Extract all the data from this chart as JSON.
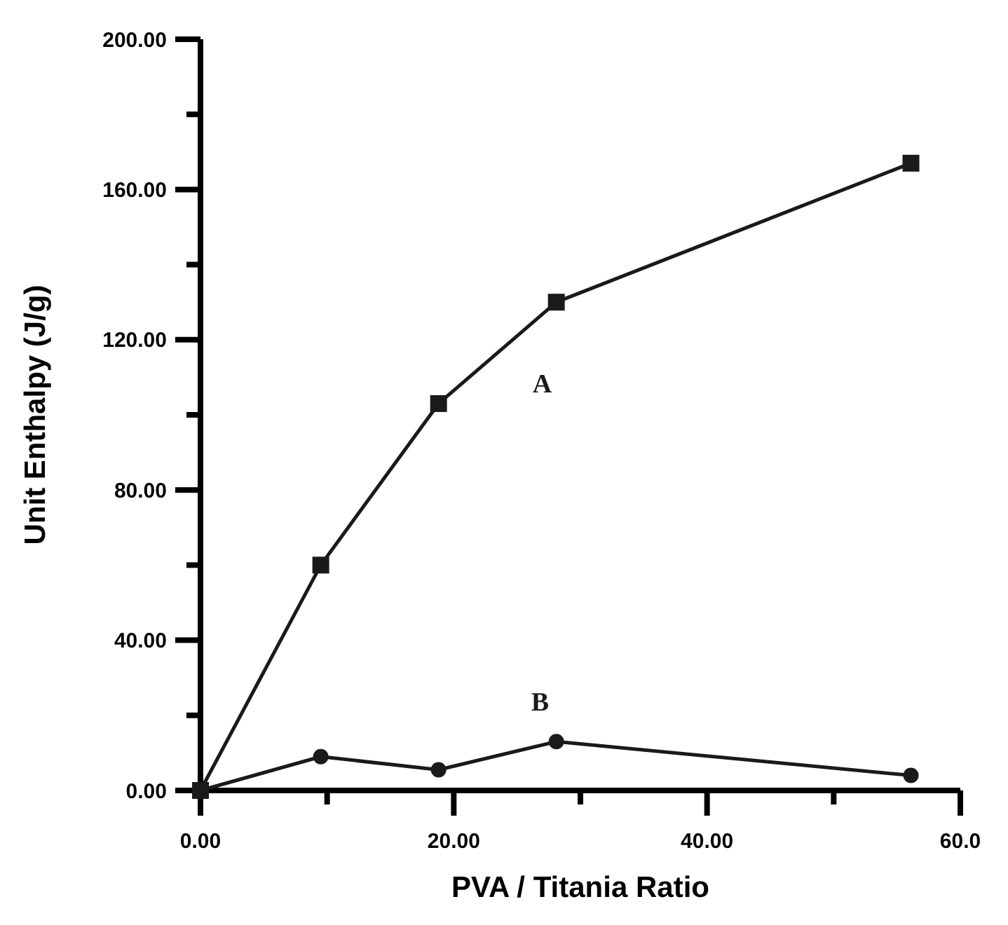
{
  "chart_data": {
    "type": "line",
    "xlabel": "PVA / Titania Ratio",
    "ylabel": "Unit Enthalpy (J/g)",
    "x": [
      0,
      9.5,
      18.8,
      28.1,
      56.1
    ],
    "series": [
      {
        "name": "A",
        "color": "#1a1a1a",
        "values": [
          0,
          60,
          103,
          130,
          167
        ],
        "marker": "square"
      },
      {
        "name": "B",
        "color": "#1a1a1a",
        "values": [
          0,
          9,
          5.5,
          13,
          4
        ],
        "marker": "circle"
      }
    ],
    "xlim": [
      0,
      60
    ],
    "xticks": [
      {
        "value": 0,
        "label": "0.00"
      },
      {
        "value": 20,
        "label": "20.00"
      },
      {
        "value": 40,
        "label": "40.00"
      },
      {
        "value": 60,
        "label": "60.0"
      }
    ],
    "ylim": [
      0,
      200
    ],
    "yticks": [
      {
        "value": 0,
        "label": "0.00"
      },
      {
        "value": 40,
        "label": "40.00"
      },
      {
        "value": 80,
        "label": "80.00"
      },
      {
        "value": 120,
        "label": "120.00"
      },
      {
        "value": 160,
        "label": "160.00"
      },
      {
        "value": 200,
        "label": "200.00"
      }
    ],
    "grid": false,
    "legend": false,
    "line_style": "solid"
  }
}
